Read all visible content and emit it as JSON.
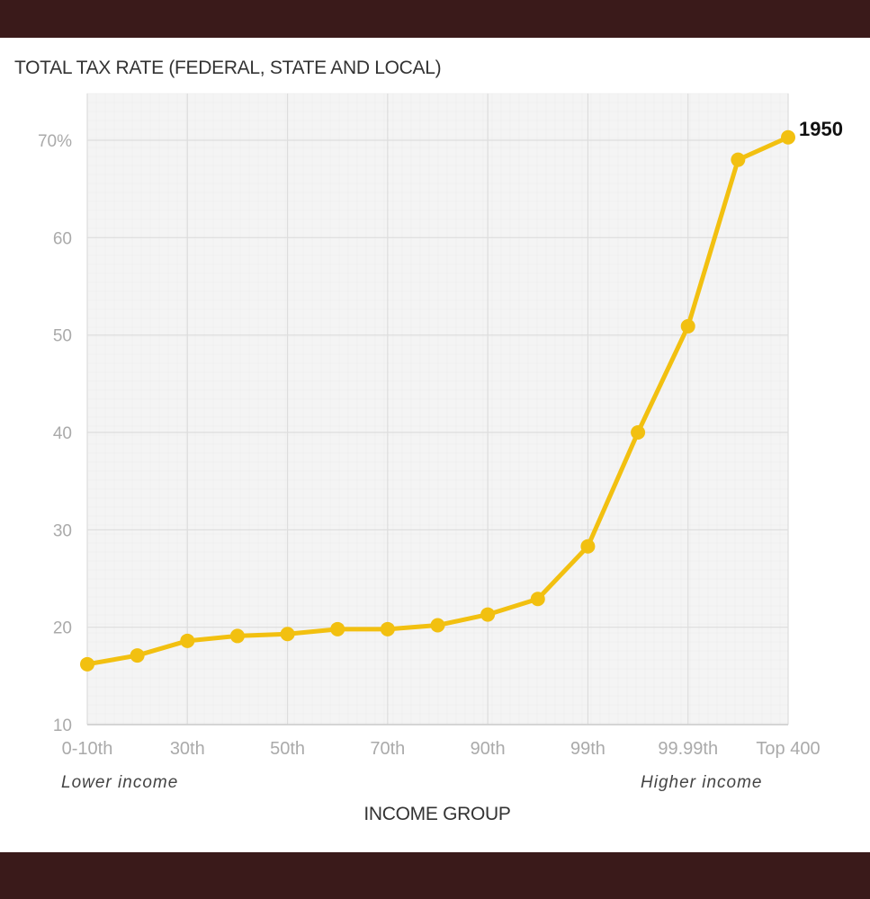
{
  "chart_data": {
    "type": "line",
    "title": "TOTAL TAX RATE (FEDERAL, STATE AND LOCAL)",
    "xlabel": "INCOME GROUP",
    "ylabel": "",
    "ylim": [
      10,
      72
    ],
    "yticks": [
      10,
      20,
      30,
      40,
      50,
      60,
      70
    ],
    "ytick_labels": [
      "10",
      "20",
      "30",
      "40",
      "50",
      "60",
      "70%"
    ],
    "x_tick_labels": [
      "0-10th",
      "30th",
      "50th",
      "70th",
      "90th",
      "99th",
      "99.99th",
      "Top 400"
    ],
    "x_tick_indices": [
      0,
      2,
      4,
      6,
      8,
      10,
      12,
      14
    ],
    "grid": true,
    "line_color": "#f2c010",
    "series": [
      {
        "name": "1950",
        "values": [
          16.2,
          17.1,
          18.6,
          19.1,
          19.3,
          19.8,
          19.8,
          20.2,
          21.3,
          22.9,
          28.3,
          40.0,
          50.9,
          68.0,
          70.3
        ]
      }
    ],
    "end_label": "1950",
    "annotations": {
      "lower": "Lower income",
      "higher": "Higher income"
    }
  }
}
